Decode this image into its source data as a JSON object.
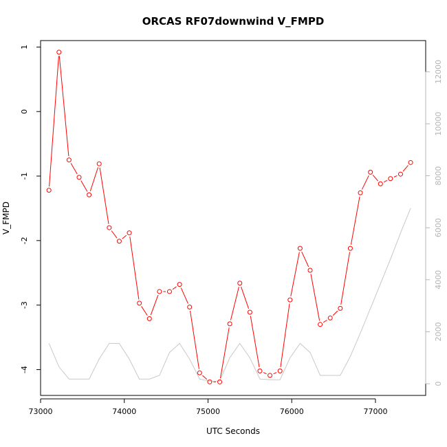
{
  "chart_data": {
    "type": "line",
    "title": "ORCAS RF07downwind V_FMPD",
    "xlabel": "UTC Seconds",
    "ylabel": "V_FMPD",
    "xlim": [
      73000,
      77600
    ],
    "ylim": [
      -4.4,
      1.1
    ],
    "y2lim": [
      -450,
      13200
    ],
    "xticks": [
      73000,
      74000,
      75000,
      76000,
      77000
    ],
    "xtick_labels": [
      "73000",
      "74000",
      "75000",
      "76000",
      "77000"
    ],
    "yticks": [
      -4,
      -3,
      -2,
      -1,
      0,
      1
    ],
    "ytick_labels": [
      "-4",
      "-3",
      "-2",
      "-1",
      "0",
      "1"
    ],
    "y2ticks": [
      0,
      2000,
      4000,
      6000,
      8000,
      10000,
      12000
    ],
    "y2tick_labels": [
      "0",
      "2000",
      "4000",
      "6000",
      "8000",
      "10000",
      "12000"
    ],
    "grid": false,
    "series": [
      {
        "color": "#ff0000",
        "marker": "open-circle",
        "axis": "left",
        "x": [
          73100,
          73220,
          73340,
          73460,
          73580,
          73700,
          73820,
          73940,
          74060,
          74180,
          74300,
          74420,
          74540,
          74660,
          74780,
          74900,
          75020,
          75140,
          75260,
          75380,
          75500,
          75620,
          75740,
          75860,
          75980,
          76100,
          76220,
          76340,
          76460,
          76580,
          76700,
          76820,
          76940,
          77060,
          77180,
          77300,
          77420
        ],
        "y": [
          -1.22,
          0.92,
          -0.75,
          -1.02,
          -1.29,
          -0.81,
          -1.8,
          -2.01,
          -1.88,
          -2.97,
          -3.21,
          -2.79,
          -2.79,
          -2.68,
          -3.03,
          -4.05,
          -4.19,
          -4.19,
          -3.29,
          -2.66,
          -3.11,
          -4.02,
          -4.09,
          -4.02,
          -2.92,
          -2.12,
          -2.46,
          -3.3,
          -3.2,
          -3.05,
          -2.12,
          -1.26,
          -0.94,
          -1.12,
          -1.04,
          -0.97,
          -0.79
        ]
      },
      {
        "color": "#c8c8c8",
        "marker": "none",
        "axis": "right",
        "x": [
          73100,
          73220,
          73340,
          73460,
          73580,
          73700,
          73820,
          73940,
          74060,
          74180,
          74300,
          74420,
          74540,
          74660,
          74780,
          74900,
          75020,
          75140,
          75260,
          75380,
          75500,
          75620,
          75740,
          75860,
          75980,
          76100,
          76220,
          76340,
          76460,
          76580,
          76700,
          76820,
          76940,
          77060,
          77180,
          77300,
          77420
        ],
        "y": [
          1550,
          650,
          180,
          180,
          180,
          950,
          1550,
          1550,
          950,
          180,
          180,
          320,
          1200,
          1550,
          950,
          180,
          100,
          100,
          1000,
          1550,
          1000,
          180,
          150,
          150,
          1000,
          1550,
          1200,
          320,
          320,
          320,
          1050,
          1950,
          2900,
          3850,
          4800,
          5800,
          6750
        ]
      }
    ]
  }
}
